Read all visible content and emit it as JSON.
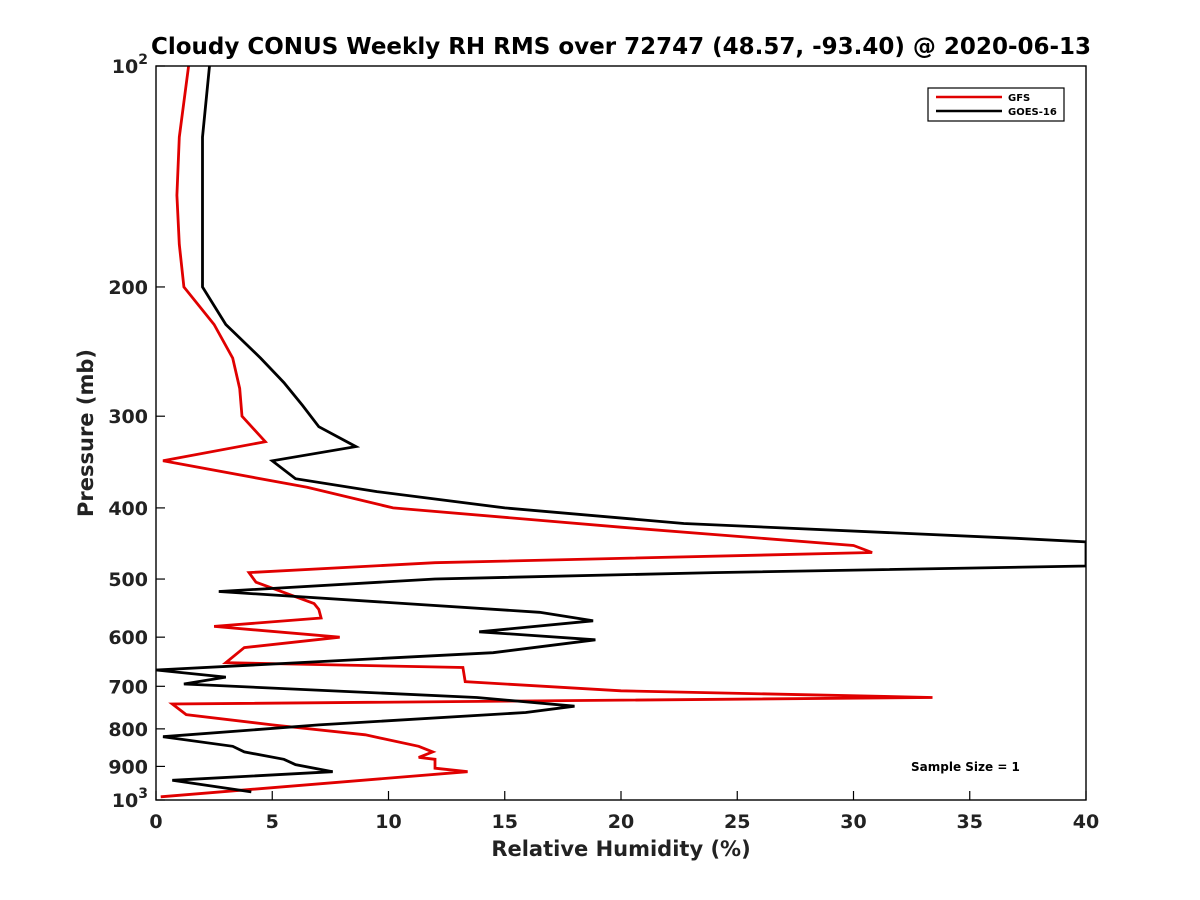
{
  "chart_data": {
    "type": "line",
    "title": "Cloudy CONUS Weekly RH RMS over 72747 (48.57, -93.40) @ 2020-06-13",
    "xlabel": "Relative Humidity (%)",
    "ylabel": "Pressure (mb)",
    "xlim": [
      0,
      40
    ],
    "ylim": [
      1000,
      100
    ],
    "yscale": "log",
    "x_ticks": [
      0,
      5,
      10,
      15,
      20,
      25,
      30,
      35,
      40
    ],
    "x_tick_labels": [
      "0",
      "5",
      "10",
      "15",
      "20",
      "25",
      "30",
      "35",
      "40"
    ],
    "y_ticks": [
      {
        "value": 100,
        "base": "10",
        "exp": "2"
      },
      {
        "value": 200,
        "label": "200"
      },
      {
        "value": 300,
        "label": "300"
      },
      {
        "value": 400,
        "label": "400"
      },
      {
        "value": 500,
        "label": "500"
      },
      {
        "value": 600,
        "label": "600"
      },
      {
        "value": 700,
        "label": "700"
      },
      {
        "value": 800,
        "label": "800"
      },
      {
        "value": 900,
        "label": "900"
      },
      {
        "value": 1000,
        "base": "10",
        "exp": "3"
      }
    ],
    "legend_position": "top-right",
    "annotation": "Sample Size = 1",
    "series": [
      {
        "name": "GFS",
        "color": "#e00000",
        "points": [
          [
            1.4,
            100
          ],
          [
            1.0,
            125
          ],
          [
            0.9,
            150
          ],
          [
            1.0,
            175
          ],
          [
            1.2,
            200
          ],
          [
            2.5,
            225
          ],
          [
            3.3,
            250
          ],
          [
            3.6,
            275
          ],
          [
            3.7,
            300
          ],
          [
            4.7,
            325
          ],
          [
            0.3,
            345
          ],
          [
            6.5,
            375
          ],
          [
            10.2,
            400
          ],
          [
            20.0,
            425
          ],
          [
            30.0,
            450
          ],
          [
            30.8,
            460
          ],
          [
            12.0,
            475
          ],
          [
            4.0,
            490
          ],
          [
            4.3,
            505
          ],
          [
            6.8,
            540
          ],
          [
            7.0,
            550
          ],
          [
            7.1,
            565
          ],
          [
            2.5,
            580
          ],
          [
            7.9,
            600
          ],
          [
            3.8,
            620
          ],
          [
            3.0,
            650
          ],
          [
            13.2,
            660
          ],
          [
            13.3,
            690
          ],
          [
            20.0,
            710
          ],
          [
            33.4,
            725
          ],
          [
            0.7,
            740
          ],
          [
            1.3,
            765
          ],
          [
            5.0,
            790
          ],
          [
            9.0,
            815
          ],
          [
            11.3,
            845
          ],
          [
            11.9,
            860
          ],
          [
            11.3,
            875
          ],
          [
            12.0,
            880
          ],
          [
            12.0,
            905
          ],
          [
            13.4,
            915
          ],
          [
            0.2,
            990
          ]
        ]
      },
      {
        "name": "GOES-16",
        "color": "#000000",
        "points": [
          [
            2.3,
            100
          ],
          [
            2.0,
            125
          ],
          [
            2.0,
            150
          ],
          [
            2.0,
            175
          ],
          [
            2.0,
            200
          ],
          [
            3.0,
            225
          ],
          [
            4.5,
            250
          ],
          [
            5.5,
            270
          ],
          [
            6.3,
            290
          ],
          [
            7.0,
            310
          ],
          [
            8.6,
            330
          ],
          [
            5.0,
            345
          ],
          [
            6.0,
            365
          ],
          [
            9.5,
            380
          ],
          [
            15.0,
            400
          ],
          [
            22.7,
            420
          ],
          [
            37.0,
            440
          ],
          [
            40.0,
            445
          ],
          [
            40.0,
            480
          ],
          [
            24.0,
            490
          ],
          [
            12.0,
            500
          ],
          [
            2.7,
            520
          ],
          [
            16.5,
            555
          ],
          [
            18.8,
            570
          ],
          [
            13.9,
            590
          ],
          [
            18.9,
            605
          ],
          [
            14.5,
            630
          ],
          [
            0.0,
            665
          ],
          [
            3.0,
            680
          ],
          [
            1.2,
            695
          ],
          [
            13.8,
            725
          ],
          [
            18.0,
            745
          ],
          [
            15.9,
            760
          ],
          [
            7.0,
            790
          ],
          [
            0.3,
            820
          ],
          [
            3.3,
            845
          ],
          [
            3.8,
            860
          ],
          [
            5.5,
            880
          ],
          [
            6.0,
            895
          ],
          [
            7.6,
            915
          ],
          [
            0.7,
            940
          ],
          [
            4.1,
            975
          ]
        ]
      }
    ]
  }
}
